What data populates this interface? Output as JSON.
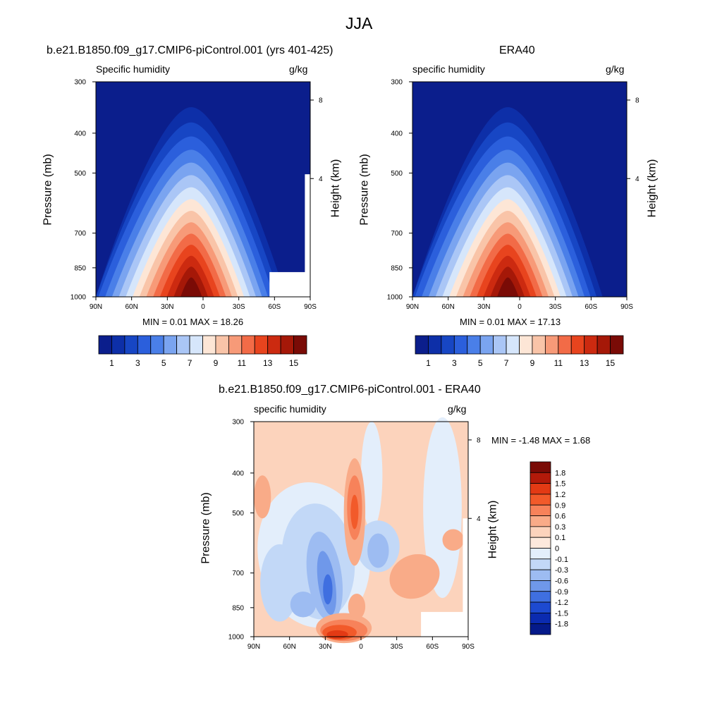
{
  "page_title": "JJA",
  "chart_data": [
    {
      "type": "contour",
      "title": "b.e21.B1850.f09_g17.CMIP6-piControl.001 (yrs 401-425)",
      "left_label": "Specific humidity",
      "right_label": "g/kg",
      "ylabel": "Pressure (mb)",
      "ylabel_right": "Height (km)",
      "x_ticks": [
        "90N",
        "60N",
        "30N",
        "0",
        "30S",
        "60S",
        "90S"
      ],
      "y_ticks": [
        "300",
        "400",
        "500",
        "700",
        "850",
        "1000"
      ],
      "height_ticks": [
        "8",
        "4"
      ],
      "stats": "MIN =   0.01   MAX =  18.26",
      "levels": [
        "1",
        "3",
        "5",
        "7",
        "9",
        "11",
        "13",
        "15"
      ],
      "colors": [
        "#0b1e8c",
        "#0d2fa8",
        "#1746c4",
        "#2b5fdc",
        "#4a7fe8",
        "#7aa4f0",
        "#aac6f6",
        "#d6e6fb",
        "#fde6d6",
        "#f9c4a8",
        "#f79a78",
        "#f26b47",
        "#e8441e",
        "#cc2a10",
        "#a51808",
        "#7a0b06"
      ]
    },
    {
      "type": "contour",
      "title": "ERA40",
      "left_label": "specific humidity",
      "right_label": "g/kg",
      "ylabel": "Pressure (mb)",
      "ylabel_right": "Height (km)",
      "x_ticks": [
        "90N",
        "60N",
        "30N",
        "0",
        "30S",
        "60S",
        "90S"
      ],
      "y_ticks": [
        "300",
        "400",
        "500",
        "700",
        "850",
        "1000"
      ],
      "height_ticks": [
        "8",
        "4"
      ],
      "stats": "MIN =   0.01   MAX =  17.13",
      "levels": [
        "1",
        "3",
        "5",
        "7",
        "9",
        "11",
        "13",
        "15"
      ],
      "colors": [
        "#0b1e8c",
        "#0d2fa8",
        "#1746c4",
        "#2b5fdc",
        "#4a7fe8",
        "#7aa4f0",
        "#aac6f6",
        "#d6e6fb",
        "#fde6d6",
        "#f9c4a8",
        "#f79a78",
        "#f26b47",
        "#e8441e",
        "#cc2a10",
        "#a51808",
        "#7a0b06"
      ]
    },
    {
      "type": "contour",
      "title": "b.e21.B1850.f09_g17.CMIP6-piControl.001 - ERA40",
      "left_label": "specific humidity",
      "right_label": "g/kg",
      "ylabel": "Pressure (mb)",
      "ylabel_right": "Height (km)",
      "x_ticks": [
        "90N",
        "60N",
        "30N",
        "0",
        "30S",
        "60S",
        "90S"
      ],
      "y_ticks": [
        "300",
        "400",
        "500",
        "700",
        "850",
        "1000"
      ],
      "height_ticks": [
        "8",
        "4"
      ],
      "stats": "MIN =  -1.48   MAX =   1.68",
      "levels": [
        "1.8",
        "1.5",
        "1.2",
        "0.9",
        "0.6",
        "0.3",
        "0.1",
        "0",
        "-0.1",
        "-0.3",
        "-0.6",
        "-0.9",
        "-1.2",
        "-1.5",
        "-1.8"
      ],
      "colors": [
        "#7a0b06",
        "#b31a0a",
        "#e33a14",
        "#f25a2a",
        "#f7825a",
        "#f9ab88",
        "#fcd3bc",
        "#fde9dc",
        "#e3eefb",
        "#c2d8f7",
        "#9dbcf2",
        "#6f98ea",
        "#3f6fe0",
        "#1d4ad0",
        "#0b2bb0",
        "#051a8a"
      ]
    }
  ]
}
